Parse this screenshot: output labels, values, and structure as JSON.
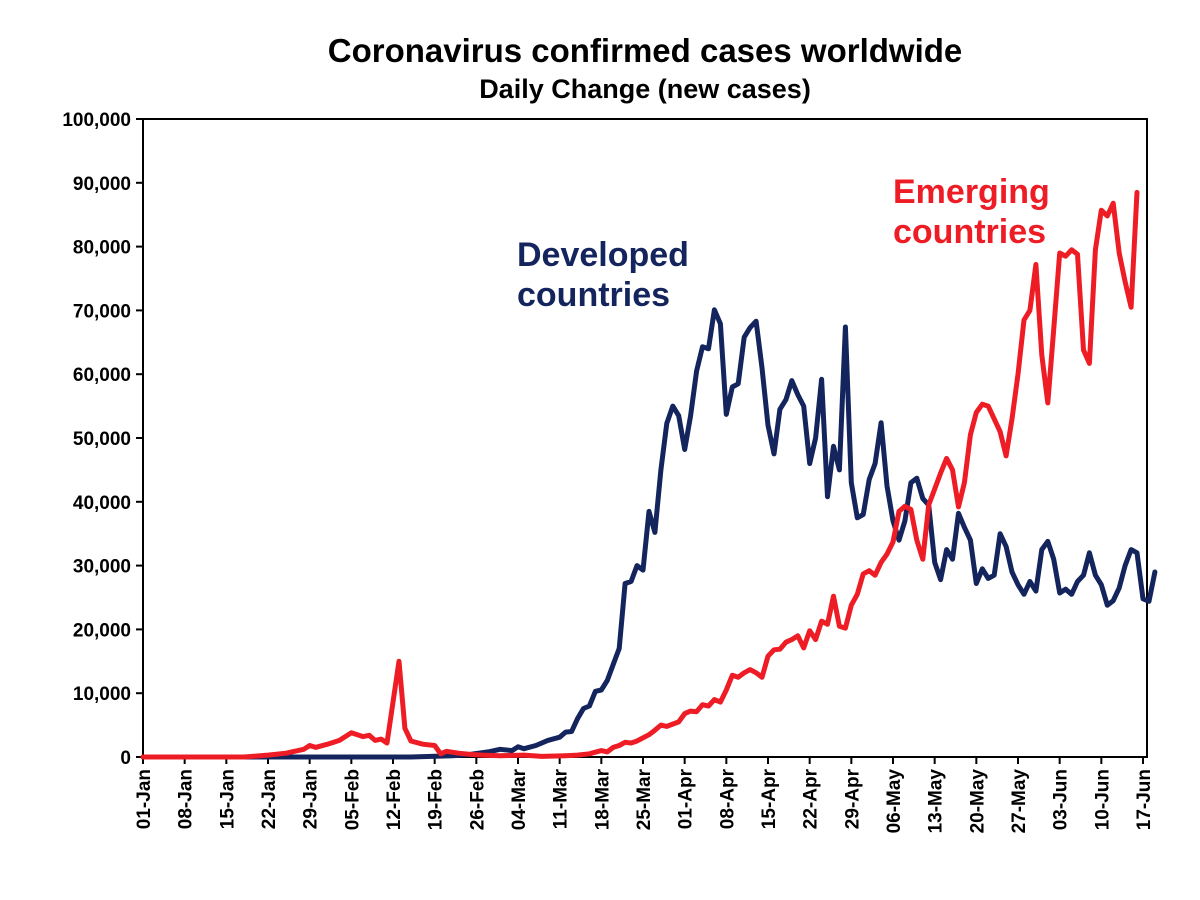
{
  "chart_data": {
    "type": "line",
    "title": "Coronavirus confirmed cases worldwide",
    "subtitle": "Daily Change (new cases)",
    "xlabel": "",
    "ylabel": "",
    "ylim": [
      0,
      100000
    ],
    "yticks": [
      0,
      10000,
      20000,
      30000,
      40000,
      50000,
      60000,
      70000,
      80000,
      90000,
      100000
    ],
    "ytick_labels": [
      "0",
      "10,000",
      "20,000",
      "30,000",
      "40,000",
      "50,000",
      "60,000",
      "70,000",
      "80,000",
      "90,000",
      "100,000"
    ],
    "x_range": [
      "2020-01-01",
      "2020-06-17"
    ],
    "xtick_dates": [
      "2020-01-01",
      "2020-01-08",
      "2020-01-15",
      "2020-01-22",
      "2020-01-29",
      "2020-02-05",
      "2020-02-12",
      "2020-02-19",
      "2020-02-26",
      "2020-03-04",
      "2020-03-11",
      "2020-03-18",
      "2020-03-25",
      "2020-04-01",
      "2020-04-08",
      "2020-04-15",
      "2020-04-22",
      "2020-04-29",
      "2020-05-06",
      "2020-05-13",
      "2020-05-20",
      "2020-05-27",
      "2020-06-03",
      "2020-06-10",
      "2020-06-17"
    ],
    "xtick_labels": [
      "01-Jan",
      "08-Jan",
      "15-Jan",
      "22-Jan",
      "29-Jan",
      "05-Feb",
      "12-Feb",
      "19-Feb",
      "26-Feb",
      "04-Mar",
      "11-Mar",
      "18-Mar",
      "25-Mar",
      "01-Apr",
      "08-Apr",
      "15-Apr",
      "22-Apr",
      "29-Apr",
      "06-May",
      "13-May",
      "20-May",
      "27-May",
      "03-Jun",
      "10-Jun",
      "17-Jun"
    ],
    "grid": false,
    "series": [
      {
        "label_lines": [
          "Developed",
          "countries"
        ],
        "color": "#14245c",
        "points": [
          [
            "2020-01-01",
            0
          ],
          [
            "2020-02-15",
            0
          ],
          [
            "2020-02-22",
            200
          ],
          [
            "2020-02-25",
            400
          ],
          [
            "2020-02-28",
            800
          ],
          [
            "2020-03-01",
            1200
          ],
          [
            "2020-03-03",
            1000
          ],
          [
            "2020-03-04",
            1600
          ],
          [
            "2020-03-05",
            1300
          ],
          [
            "2020-03-07",
            1800
          ],
          [
            "2020-03-09",
            2600
          ],
          [
            "2020-03-11",
            3100
          ],
          [
            "2020-03-12",
            3900
          ],
          [
            "2020-03-13",
            4000
          ],
          [
            "2020-03-14",
            6000
          ],
          [
            "2020-03-15",
            7600
          ],
          [
            "2020-03-16",
            8000
          ],
          [
            "2020-03-17",
            10300
          ],
          [
            "2020-03-18",
            10500
          ],
          [
            "2020-03-19",
            12000
          ],
          [
            "2020-03-20",
            14500
          ],
          [
            "2020-03-21",
            17000
          ],
          [
            "2020-03-22",
            27200
          ],
          [
            "2020-03-23",
            27500
          ],
          [
            "2020-03-24",
            30000
          ],
          [
            "2020-03-25",
            29300
          ],
          [
            "2020-03-26",
            38500
          ],
          [
            "2020-03-27",
            35200
          ],
          [
            "2020-03-28",
            45000
          ],
          [
            "2020-03-29",
            52300
          ],
          [
            "2020-03-30",
            55000
          ],
          [
            "2020-03-31",
            53500
          ],
          [
            "2020-04-01",
            48200
          ],
          [
            "2020-04-02",
            53500
          ],
          [
            "2020-04-03",
            60500
          ],
          [
            "2020-04-04",
            64300
          ],
          [
            "2020-04-05",
            64000
          ],
          [
            "2020-04-06",
            70100
          ],
          [
            "2020-04-07",
            67900
          ],
          [
            "2020-04-08",
            53700
          ],
          [
            "2020-04-09",
            58000
          ],
          [
            "2020-04-10",
            58500
          ],
          [
            "2020-04-11",
            65800
          ],
          [
            "2020-04-12",
            67300
          ],
          [
            "2020-04-13",
            68300
          ],
          [
            "2020-04-14",
            61000
          ],
          [
            "2020-04-15",
            52000
          ],
          [
            "2020-04-16",
            47500
          ],
          [
            "2020-04-17",
            54500
          ],
          [
            "2020-04-18",
            56000
          ],
          [
            "2020-04-19",
            59000
          ],
          [
            "2020-04-20",
            56800
          ],
          [
            "2020-04-21",
            55000
          ],
          [
            "2020-04-22",
            46000
          ],
          [
            "2020-04-23",
            50000
          ],
          [
            "2020-04-24",
            59200
          ],
          [
            "2020-04-25",
            40800
          ],
          [
            "2020-04-26",
            48700
          ],
          [
            "2020-04-27",
            45000
          ],
          [
            "2020-04-28",
            67400
          ],
          [
            "2020-04-29",
            43000
          ],
          [
            "2020-04-30",
            37500
          ],
          [
            "2020-05-01",
            38000
          ],
          [
            "2020-05-02",
            43500
          ],
          [
            "2020-05-03",
            46000
          ],
          [
            "2020-05-04",
            52400
          ],
          [
            "2020-05-05",
            42500
          ],
          [
            "2020-05-06",
            37000
          ],
          [
            "2020-05-07",
            34000
          ],
          [
            "2020-05-08",
            37000
          ],
          [
            "2020-05-09",
            43000
          ],
          [
            "2020-05-10",
            43700
          ],
          [
            "2020-05-11",
            40500
          ],
          [
            "2020-05-12",
            39500
          ],
          [
            "2020-05-13",
            30500
          ],
          [
            "2020-05-14",
            27800
          ],
          [
            "2020-05-15",
            32500
          ],
          [
            "2020-05-16",
            31000
          ],
          [
            "2020-05-17",
            38200
          ],
          [
            "2020-05-18",
            36000
          ],
          [
            "2020-05-19",
            34000
          ],
          [
            "2020-05-20",
            27200
          ],
          [
            "2020-05-21",
            29500
          ],
          [
            "2020-05-22",
            28000
          ],
          [
            "2020-05-23",
            28500
          ],
          [
            "2020-05-24",
            35000
          ],
          [
            "2020-05-25",
            33000
          ],
          [
            "2020-05-26",
            29000
          ],
          [
            "2020-05-27",
            27000
          ],
          [
            "2020-05-28",
            25500
          ],
          [
            "2020-05-29",
            27500
          ],
          [
            "2020-05-30",
            26000
          ],
          [
            "2020-05-31",
            32500
          ],
          [
            "2020-06-01",
            33800
          ],
          [
            "2020-06-02",
            31000
          ],
          [
            "2020-06-03",
            25700
          ],
          [
            "2020-06-04",
            26300
          ],
          [
            "2020-06-05",
            25500
          ],
          [
            "2020-06-06",
            27500
          ],
          [
            "2020-06-07",
            28500
          ],
          [
            "2020-06-08",
            32000
          ],
          [
            "2020-06-09",
            28500
          ],
          [
            "2020-06-10",
            27000
          ],
          [
            "2020-06-11",
            23800
          ],
          [
            "2020-06-12",
            24500
          ],
          [
            "2020-06-13",
            26500
          ],
          [
            "2020-06-14",
            30000
          ],
          [
            "2020-06-15",
            32500
          ],
          [
            "2020-06-16",
            32000
          ],
          [
            "2020-06-17",
            24800
          ],
          [
            "2020-06-18",
            24400
          ],
          [
            "2020-06-19",
            29000
          ]
        ]
      },
      {
        "label_lines": [
          "Emerging",
          "countries"
        ],
        "color": "#ee1c25",
        "points": [
          [
            "2020-01-01",
            0
          ],
          [
            "2020-01-18",
            0
          ],
          [
            "2020-01-22",
            300
          ],
          [
            "2020-01-25",
            600
          ],
          [
            "2020-01-28",
            1200
          ],
          [
            "2020-01-29",
            1800
          ],
          [
            "2020-01-30",
            1500
          ],
          [
            "2020-02-01",
            2000
          ],
          [
            "2020-02-03",
            2600
          ],
          [
            "2020-02-05",
            3800
          ],
          [
            "2020-02-07",
            3200
          ],
          [
            "2020-02-08",
            3400
          ],
          [
            "2020-02-09",
            2600
          ],
          [
            "2020-02-10",
            2800
          ],
          [
            "2020-02-11",
            2200
          ],
          [
            "2020-02-13",
            15000
          ],
          [
            "2020-02-14",
            4500
          ],
          [
            "2020-02-15",
            2500
          ],
          [
            "2020-02-17",
            2000
          ],
          [
            "2020-02-19",
            1800
          ],
          [
            "2020-02-20",
            500
          ],
          [
            "2020-02-21",
            900
          ],
          [
            "2020-02-23",
            600
          ],
          [
            "2020-02-25",
            400
          ],
          [
            "2020-02-27",
            300
          ],
          [
            "2020-03-01",
            200
          ],
          [
            "2020-03-05",
            300
          ],
          [
            "2020-03-08",
            100
          ],
          [
            "2020-03-12",
            200
          ],
          [
            "2020-03-14",
            300
          ],
          [
            "2020-03-16",
            500
          ],
          [
            "2020-03-18",
            1000
          ],
          [
            "2020-03-19",
            800
          ],
          [
            "2020-03-20",
            1500
          ],
          [
            "2020-03-21",
            1800
          ],
          [
            "2020-03-22",
            2300
          ],
          [
            "2020-03-23",
            2200
          ],
          [
            "2020-03-24",
            2500
          ],
          [
            "2020-03-26",
            3500
          ],
          [
            "2020-03-27",
            4200
          ],
          [
            "2020-03-28",
            5000
          ],
          [
            "2020-03-29",
            4800
          ],
          [
            "2020-03-31",
            5500
          ],
          [
            "2020-04-01",
            6800
          ],
          [
            "2020-04-02",
            7200
          ],
          [
            "2020-04-03",
            7100
          ],
          [
            "2020-04-04",
            8200
          ],
          [
            "2020-04-05",
            8000
          ],
          [
            "2020-04-06",
            9000
          ],
          [
            "2020-04-07",
            8600
          ],
          [
            "2020-04-08",
            10500
          ],
          [
            "2020-04-09",
            12800
          ],
          [
            "2020-04-10",
            12500
          ],
          [
            "2020-04-11",
            13200
          ],
          [
            "2020-04-12",
            13700
          ],
          [
            "2020-04-13",
            13200
          ],
          [
            "2020-04-14",
            12500
          ],
          [
            "2020-04-15",
            15800
          ],
          [
            "2020-04-16",
            16800
          ],
          [
            "2020-04-17",
            16900
          ],
          [
            "2020-04-18",
            18000
          ],
          [
            "2020-04-19",
            18400
          ],
          [
            "2020-04-20",
            19000
          ],
          [
            "2020-04-21",
            17100
          ],
          [
            "2020-04-22",
            19800
          ],
          [
            "2020-04-23",
            18400
          ],
          [
            "2020-04-24",
            21300
          ],
          [
            "2020-04-25",
            20800
          ],
          [
            "2020-04-26",
            25200
          ],
          [
            "2020-04-27",
            20500
          ],
          [
            "2020-04-28",
            20200
          ],
          [
            "2020-04-29",
            23800
          ],
          [
            "2020-04-30",
            25500
          ],
          [
            "2020-05-01",
            28700
          ],
          [
            "2020-05-02",
            29200
          ],
          [
            "2020-05-03",
            28500
          ],
          [
            "2020-05-04",
            30500
          ],
          [
            "2020-05-05",
            31800
          ],
          [
            "2020-05-06",
            33700
          ],
          [
            "2020-05-07",
            38500
          ],
          [
            "2020-05-08",
            39300
          ],
          [
            "2020-05-09",
            38800
          ],
          [
            "2020-05-10",
            34000
          ],
          [
            "2020-05-11",
            31000
          ],
          [
            "2020-05-12",
            39500
          ],
          [
            "2020-05-13",
            42000
          ],
          [
            "2020-05-14",
            44500
          ],
          [
            "2020-05-15",
            46800
          ],
          [
            "2020-05-16",
            45000
          ],
          [
            "2020-05-17",
            39200
          ],
          [
            "2020-05-18",
            43000
          ],
          [
            "2020-05-19",
            50500
          ],
          [
            "2020-05-20",
            54000
          ],
          [
            "2020-05-21",
            55300
          ],
          [
            "2020-05-22",
            55000
          ],
          [
            "2020-05-23",
            53000
          ],
          [
            "2020-05-24",
            51000
          ],
          [
            "2020-05-25",
            47200
          ],
          [
            "2020-05-26",
            53000
          ],
          [
            "2020-05-27",
            60000
          ],
          [
            "2020-05-28",
            68500
          ],
          [
            "2020-05-29",
            70000
          ],
          [
            "2020-05-30",
            77200
          ],
          [
            "2020-05-31",
            63000
          ],
          [
            "2020-06-01",
            55500
          ],
          [
            "2020-06-02",
            67000
          ],
          [
            "2020-06-03",
            79000
          ],
          [
            "2020-06-04",
            78500
          ],
          [
            "2020-06-05",
            79500
          ],
          [
            "2020-06-06",
            78800
          ],
          [
            "2020-06-07",
            63800
          ],
          [
            "2020-06-08",
            61700
          ],
          [
            "2020-06-09",
            79500
          ],
          [
            "2020-06-10",
            85700
          ],
          [
            "2020-06-11",
            84800
          ],
          [
            "2020-06-12",
            86800
          ],
          [
            "2020-06-13",
            79000
          ],
          [
            "2020-06-14",
            74500
          ],
          [
            "2020-06-15",
            70500
          ],
          [
            "2020-06-16",
            88500
          ]
        ]
      }
    ]
  }
}
